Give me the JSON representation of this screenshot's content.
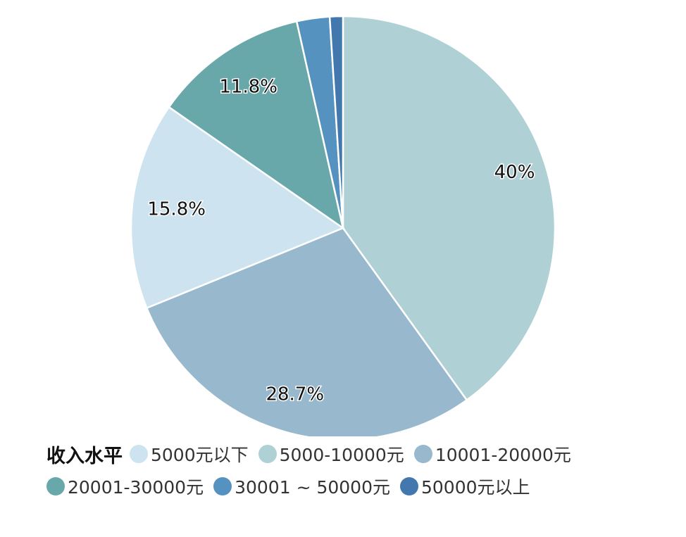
{
  "chart_data": {
    "type": "pie",
    "title": "",
    "legend_title": "收入水平",
    "legend_position": "bottom-left",
    "categories": [
      "5000元以下",
      "5000-10000元",
      "10001-20000元",
      "20001-30000元",
      "30001 ~ 50000元",
      "50000元以上"
    ],
    "values": [
      15.8,
      40,
      28.7,
      11.8,
      2.5,
      1.0
    ],
    "data_labels": [
      "15.8%",
      "40%",
      "28.7%",
      "11.8%",
      "",
      ""
    ],
    "colors": [
      "#cde3ef",
      "#afd0d4",
      "#97b8cd",
      "#69a8aa",
      "#5592bf",
      "#4378ae"
    ]
  }
}
